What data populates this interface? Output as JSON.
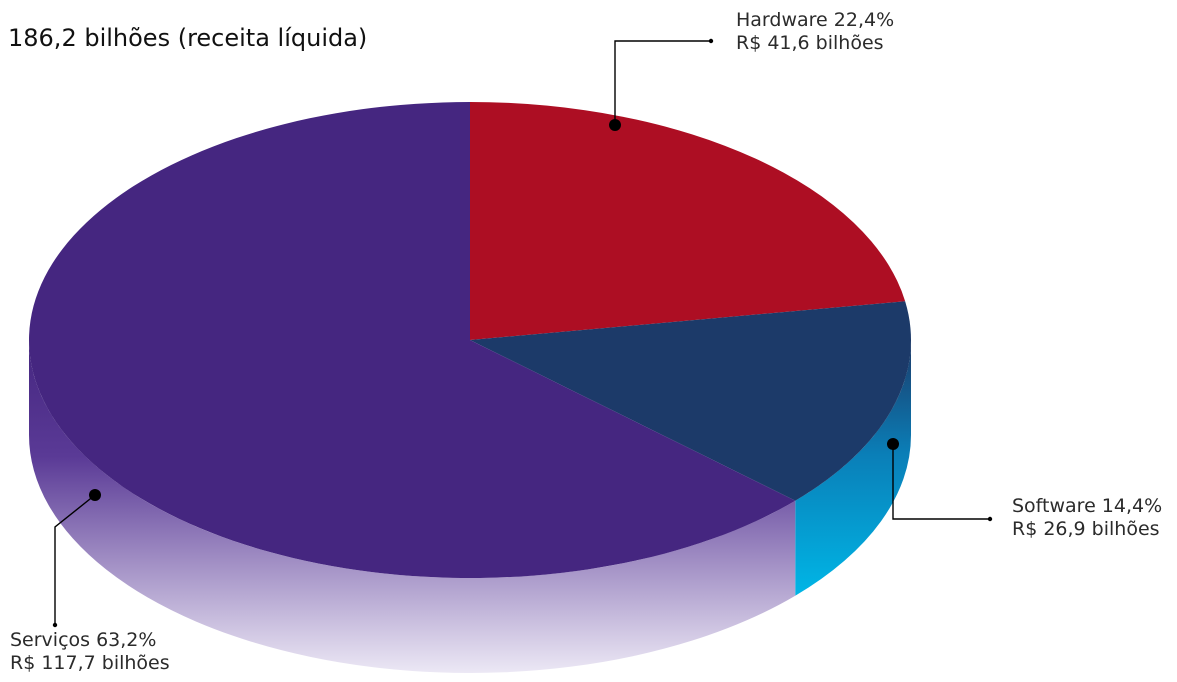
{
  "chart_data": {
    "type": "pie",
    "title": "186,2 bilhões (receita líquida)",
    "slices": [
      {
        "name": "Hardware",
        "percent": 22.4,
        "percent_label": "Hardware 22,4%",
        "value_label": "R$ 41,6 bilhões",
        "value": 41.6,
        "color": "#ad0e23",
        "side_color": "#8a0b1c"
      },
      {
        "name": "Software",
        "percent": 14.4,
        "percent_label": "Software 14,4%",
        "value_label": "R$  26,9 bilhões",
        "value": 26.9,
        "color": "#1c3a69",
        "side_color": "#0aa6d6"
      },
      {
        "name": "Serviços",
        "percent": 63.2,
        "percent_label": "Serviços 63,2%",
        "value_label": "R$ 117,7 bilhões",
        "value": 117.7,
        "color": "#452680",
        "side_color": "#6a4aa6"
      }
    ]
  }
}
